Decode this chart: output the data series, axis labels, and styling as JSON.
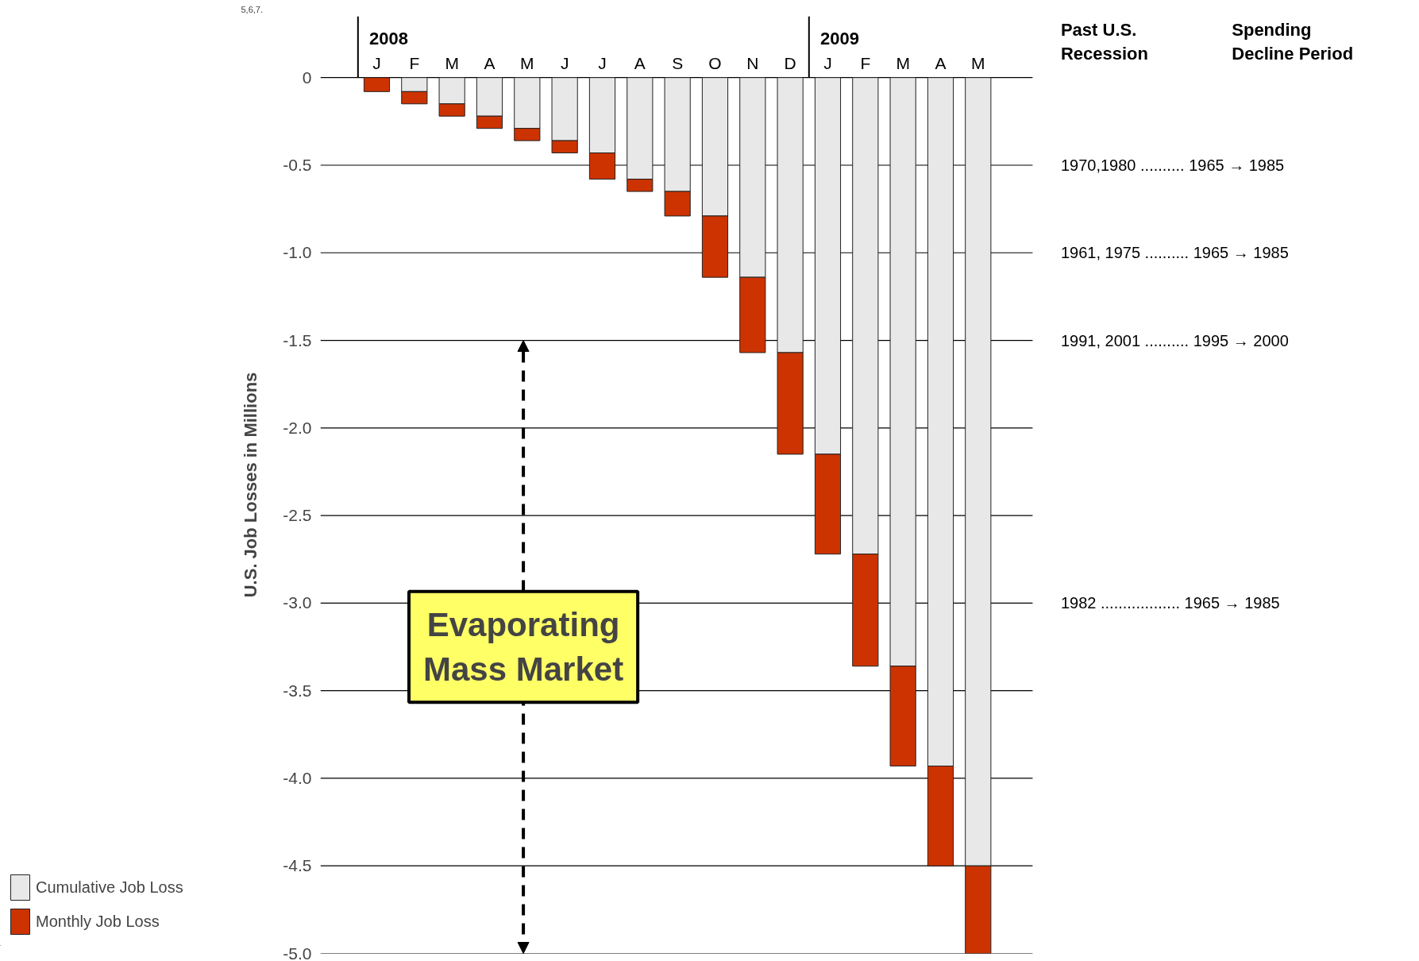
{
  "chart_data": {
    "type": "bar",
    "stacked": true,
    "ylabel": "U.S. Job Losses in Millions",
    "categories": [
      "J",
      "F",
      "M",
      "A",
      "M",
      "J",
      "J",
      "A",
      "S",
      "O",
      "N",
      "D",
      "J",
      "F",
      "M",
      "A",
      "M"
    ],
    "series": [
      {
        "name": "Cumulative Job Loss",
        "color": "#e8e8e8",
        "values": [
          0,
          -0.08,
          -0.15,
          -0.22,
          -0.29,
          -0.36,
          -0.43,
          -0.58,
          -0.65,
          -0.79,
          -1.14,
          -1.57,
          -2.15,
          -2.72,
          -3.36,
          -3.93,
          -4.5
        ]
      },
      {
        "name": "Monthly Job Loss",
        "color": "#cc3300",
        "values": [
          -0.08,
          -0.07,
          -0.07,
          -0.07,
          -0.07,
          -0.07,
          -0.15,
          -0.07,
          -0.14,
          -0.35,
          -0.43,
          -0.58,
          -0.57,
          -0.64,
          -0.57,
          -0.57,
          -0.5
        ]
      }
    ],
    "ylim": [
      -5.0,
      0
    ],
    "yticks": [
      0,
      {
        "value": -0.5,
        "label": "-0.5"
      },
      {
        "value": -1,
        "label": "-1.0"
      },
      {
        "value": -1.5,
        "label": "-1.5"
      },
      {
        "value": -2,
        "label": "-2.0"
      },
      {
        "value": -2.5,
        "label": "-2.5"
      },
      {
        "value": -3,
        "label": "-3.0"
      },
      {
        "value": -3.5,
        "label": "-3.5"
      },
      {
        "value": -4,
        "label": "-4.0"
      },
      {
        "value": -4.5,
        "label": "-4.5"
      },
      {
        "value": -5,
        "label": "-5.0"
      }
    ],
    "grid": "y",
    "legend": "bottom left",
    "annotations": [
      "5,6,7.",
      "2008",
      "2009",
      "Evaporating\nMass Market",
      "Past U.S.\nRecession",
      "Spending\nDecline Period",
      "1970,1980 .......... 1965 → 1985",
      "1961, 1975 .......... 1965 → 1985",
      "1991, 2001 .......... 1995 → 2000",
      "1982 .................. 1965 → 1985"
    ]
  }
}
